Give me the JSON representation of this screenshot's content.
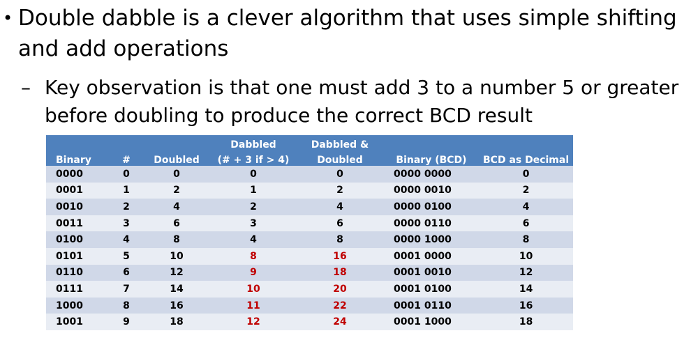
{
  "bullets": {
    "main": "Double dabble is a clever algorithm that uses simple shifting and add operations",
    "sub": "Key observation is that one must add 3 to a number 5 or greater before doubling to produce the correct BCD result"
  },
  "table": {
    "headers": {
      "top": [
        "",
        "",
        "",
        "Dabbled",
        "Dabbled &",
        "",
        ""
      ],
      "bottom": [
        "Binary",
        "#",
        "Doubled",
        "(# + 3 if > 4)",
        "Doubled",
        "Binary (BCD)",
        "BCD as Decimal"
      ]
    },
    "rows": [
      [
        "0000",
        "0",
        "0",
        "0",
        "0",
        "0000 0000",
        "0"
      ],
      [
        "0001",
        "1",
        "2",
        "1",
        "2",
        "0000 0010",
        "2"
      ],
      [
        "0010",
        "2",
        "4",
        "2",
        "4",
        "0000 0100",
        "4"
      ],
      [
        "0011",
        "3",
        "6",
        "3",
        "6",
        "0000 0110",
        "6"
      ],
      [
        "0100",
        "4",
        "8",
        "4",
        "8",
        "0000 1000",
        "8"
      ],
      [
        "0101",
        "5",
        "10",
        "8",
        "16",
        "0001 0000",
        "10"
      ],
      [
        "0110",
        "6",
        "12",
        "9",
        "18",
        "0001 0010",
        "12"
      ],
      [
        "0111",
        "7",
        "14",
        "10",
        "20",
        "0001 0100",
        "14"
      ],
      [
        "1000",
        "8",
        "16",
        "11",
        "22",
        "0001 0110",
        "16"
      ],
      [
        "1001",
        "9",
        "18",
        "12",
        "24",
        "0001 1000",
        "18"
      ]
    ],
    "highlight_color": "#c00000",
    "header_color": "#4f81bd"
  }
}
